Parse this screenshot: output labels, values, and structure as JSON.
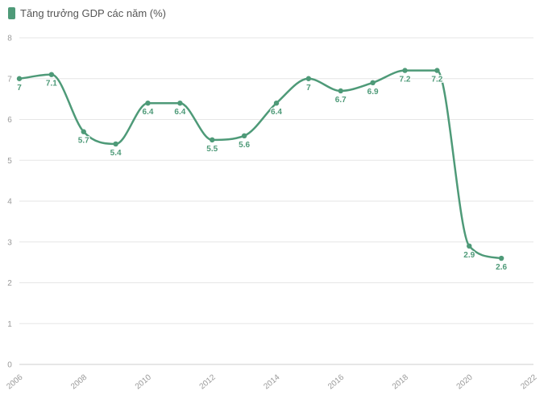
{
  "chart_data": {
    "type": "line",
    "title": "",
    "xlabel": "",
    "ylabel": "",
    "xlim": [
      2006,
      2022
    ],
    "ylim": [
      0,
      8
    ],
    "x_ticks": [
      "2006",
      "2008",
      "2010",
      "2012",
      "2014",
      "2016",
      "2018",
      "2020",
      "2022"
    ],
    "y_ticks": [
      "0",
      "1",
      "2",
      "3",
      "4",
      "5",
      "6",
      "7",
      "8"
    ],
    "grid": true,
    "legend_position": "top-left",
    "colors": {
      "series": "#4e9a78",
      "grid": "#e6e6e6",
      "tick_text": "#999999"
    },
    "series": [
      {
        "name": "Tăng trưởng GDP các năm (%)",
        "points": [
          {
            "x": 2006,
            "y": 7,
            "label": "7"
          },
          {
            "x": 2007,
            "y": 7.1,
            "label": "7.1"
          },
          {
            "x": 2008,
            "y": 5.7,
            "label": "5.7"
          },
          {
            "x": 2009,
            "y": 5.4,
            "label": "5.4"
          },
          {
            "x": 2010,
            "y": 6.4,
            "label": "6.4"
          },
          {
            "x": 2011,
            "y": 6.4,
            "label": "6.4"
          },
          {
            "x": 2012,
            "y": 5.5,
            "label": "5.5"
          },
          {
            "x": 2013,
            "y": 5.6,
            "label": "5.6"
          },
          {
            "x": 2014,
            "y": 6.4,
            "label": "6.4"
          },
          {
            "x": 2015,
            "y": 7,
            "label": "7"
          },
          {
            "x": 2016,
            "y": 6.7,
            "label": "6.7"
          },
          {
            "x": 2017,
            "y": 6.9,
            "label": "6.9"
          },
          {
            "x": 2018,
            "y": 7.2,
            "label": "7.2"
          },
          {
            "x": 2019,
            "y": 7.2,
            "label": "7.2"
          },
          {
            "x": 2020,
            "y": 2.9,
            "label": "2.9"
          },
          {
            "x": 2021,
            "y": 2.6,
            "label": "2.6"
          }
        ]
      }
    ]
  }
}
